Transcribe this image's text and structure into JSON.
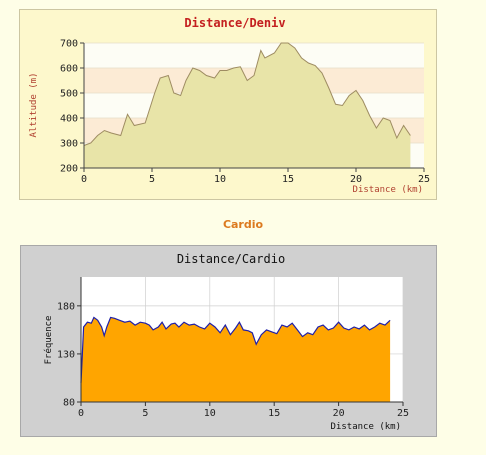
{
  "section_heading": "Cardio",
  "chart_data": [
    {
      "type": "area",
      "title": "Distance/Deniv",
      "xlabel": "Distance (km)",
      "ylabel": "Altitude (m)",
      "xlim": [
        0,
        25
      ],
      "ylim": [
        200,
        700
      ],
      "xticks": [
        "0",
        "5",
        "10",
        "15",
        "20",
        "25"
      ],
      "yticks": [
        "200",
        "300",
        "400",
        "500",
        "600",
        "700"
      ],
      "x": [
        0,
        0.5,
        1,
        1.5,
        2,
        2.7,
        3.2,
        3.7,
        4.5,
        5.2,
        5.6,
        6.2,
        6.6,
        7.1,
        7.5,
        8,
        8.5,
        9,
        9.6,
        10,
        10.5,
        11,
        11.5,
        12,
        12.5,
        13,
        13.3,
        14,
        14.5,
        15,
        15.5,
        16,
        16.5,
        17,
        17.5,
        18,
        18.5,
        19,
        19.5,
        20,
        20.5,
        21,
        21.5,
        22,
        22.5,
        23,
        23.5,
        24
      ],
      "y": [
        290,
        300,
        330,
        350,
        340,
        330,
        415,
        370,
        380,
        500,
        560,
        570,
        500,
        490,
        550,
        600,
        590,
        570,
        560,
        590,
        590,
        600,
        605,
        550,
        570,
        670,
        640,
        660,
        700,
        700,
        680,
        640,
        620,
        610,
        580,
        520,
        455,
        450,
        490,
        510,
        470,
        410,
        360,
        400,
        390,
        320,
        370,
        330
      ],
      "grid": true,
      "band_colors": [
        "#fdfdf5",
        "#fcebd5"
      ]
    },
    {
      "type": "area",
      "title": "Distance/Cardio",
      "xlabel": "Distance (km)",
      "ylabel": "Fréquence",
      "xlim": [
        0,
        25
      ],
      "ylim": [
        80,
        210
      ],
      "xticks": [
        "0",
        "5",
        "10",
        "15",
        "20",
        "25"
      ],
      "yticks": [
        "80",
        "130",
        "180"
      ],
      "x": [
        0,
        0.2,
        0.5,
        0.8,
        1,
        1.3,
        1.6,
        1.8,
        2,
        2.3,
        2.6,
        3,
        3.4,
        3.8,
        4.2,
        4.6,
        5,
        5.3,
        5.6,
        6,
        6.3,
        6.6,
        7,
        7.3,
        7.6,
        8,
        8.4,
        8.8,
        9.2,
        9.6,
        10,
        10.4,
        10.8,
        11.2,
        11.6,
        12,
        12.3,
        12.6,
        13,
        13.3,
        13.6,
        14,
        14.4,
        14.8,
        15.2,
        15.6,
        16,
        16.4,
        16.8,
        17.2,
        17.6,
        18,
        18.4,
        18.8,
        19.2,
        19.6,
        20,
        20.4,
        20.8,
        21.2,
        21.6,
        22,
        22.4,
        22.8,
        23.2,
        23.6,
        24
      ],
      "y": [
        100,
        158,
        163,
        162,
        168,
        165,
        158,
        149,
        158,
        168,
        167,
        165,
        163,
        164,
        160,
        163,
        162,
        160,
        155,
        158,
        163,
        156,
        161,
        162,
        158,
        163,
        160,
        161,
        158,
        156,
        162,
        158,
        152,
        160,
        150,
        157,
        163,
        155,
        154,
        152,
        140,
        150,
        155,
        153,
        151,
        160,
        158,
        162,
        155,
        148,
        152,
        150,
        158,
        160,
        155,
        157,
        163,
        157,
        155,
        158,
        156,
        160,
        155,
        158,
        162,
        160,
        165
      ],
      "grid": true,
      "fill_color": "#ffa500",
      "line_color": "#1f1fa8"
    }
  ]
}
